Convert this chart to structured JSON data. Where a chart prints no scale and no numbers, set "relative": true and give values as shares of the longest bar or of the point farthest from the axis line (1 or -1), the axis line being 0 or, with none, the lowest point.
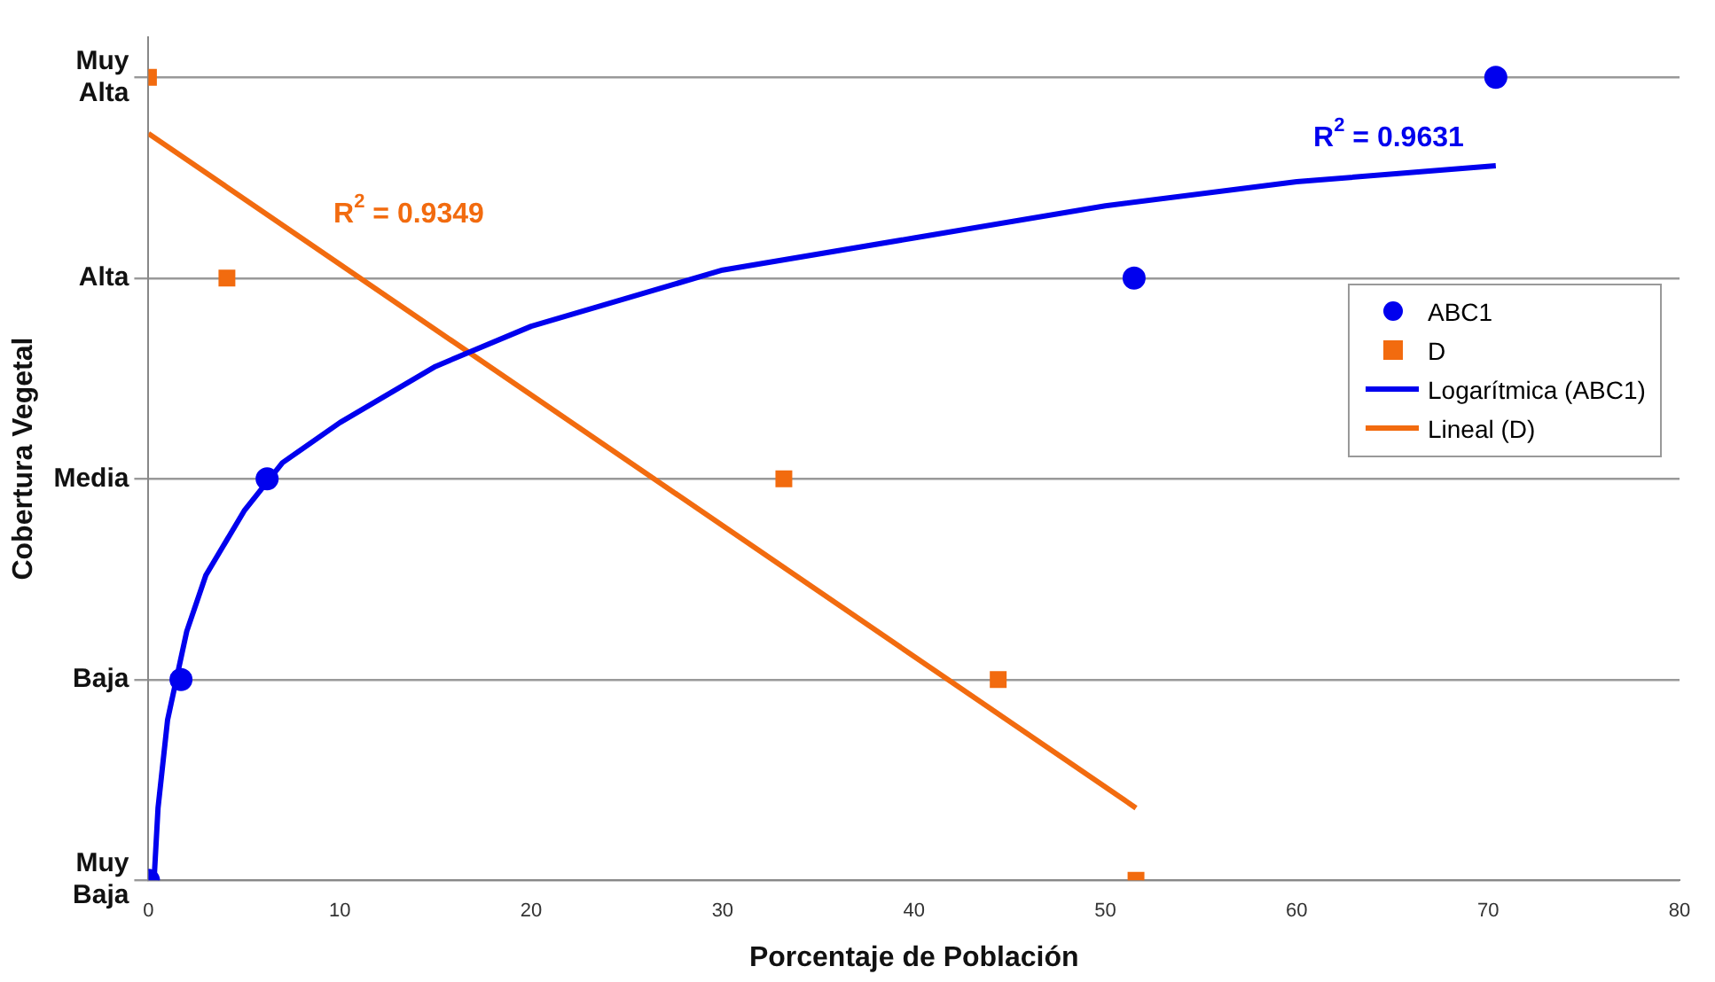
{
  "chart_data": {
    "type": "scatter",
    "xlabel": "Porcentaje de Población",
    "ylabel": "Cobertura Vegetal",
    "xlim": [
      0,
      80
    ],
    "xticks": [
      0,
      10,
      20,
      30,
      40,
      50,
      60,
      70,
      80
    ],
    "relative": true,
    "grid": "y",
    "legend": "right",
    "series": [
      {
        "name": "ABC1",
        "type": "scatter",
        "color": "#0000ee",
        "marker": "circle",
        "x": [
          0,
          1.7,
          6.2,
          51.5,
          70.4
        ],
        "values": [
          0,
          0.25,
          0.5,
          0.75,
          1
        ]
      },
      {
        "name": "D",
        "type": "scatter",
        "color": "#f26b0f",
        "marker": "square",
        "x": [
          0,
          4.1,
          33.2,
          44.4,
          51.6
        ],
        "values": [
          1,
          0.75,
          0.5,
          0.25,
          0
        ]
      },
      {
        "name": "Logarítmica (ABC1)",
        "type": "line",
        "color": "#0000ee",
        "marker": "none",
        "x": [
          0.3,
          0.5,
          1,
          2,
          3,
          5,
          7,
          10,
          15,
          20,
          30,
          40,
          50,
          60,
          70.4
        ],
        "values": [
          0.003,
          0.09,
          0.2,
          0.31,
          0.38,
          0.46,
          0.52,
          0.57,
          0.64,
          0.69,
          0.76,
          0.8,
          0.84,
          0.87,
          0.89
        ]
      },
      {
        "name": "Lineal (D)",
        "type": "line",
        "color": "#f26b0f",
        "marker": "none",
        "x": [
          0,
          51.6
        ],
        "values": [
          0.93,
          0.09
        ]
      }
    ],
    "annotations": [
      "R$^{2}$ = 0.9631",
      "R$^{2}$ = 0.9349",
      "Muy Alta",
      "Alta",
      "Media",
      "Baja",
      "Muy Baja"
    ]
  }
}
